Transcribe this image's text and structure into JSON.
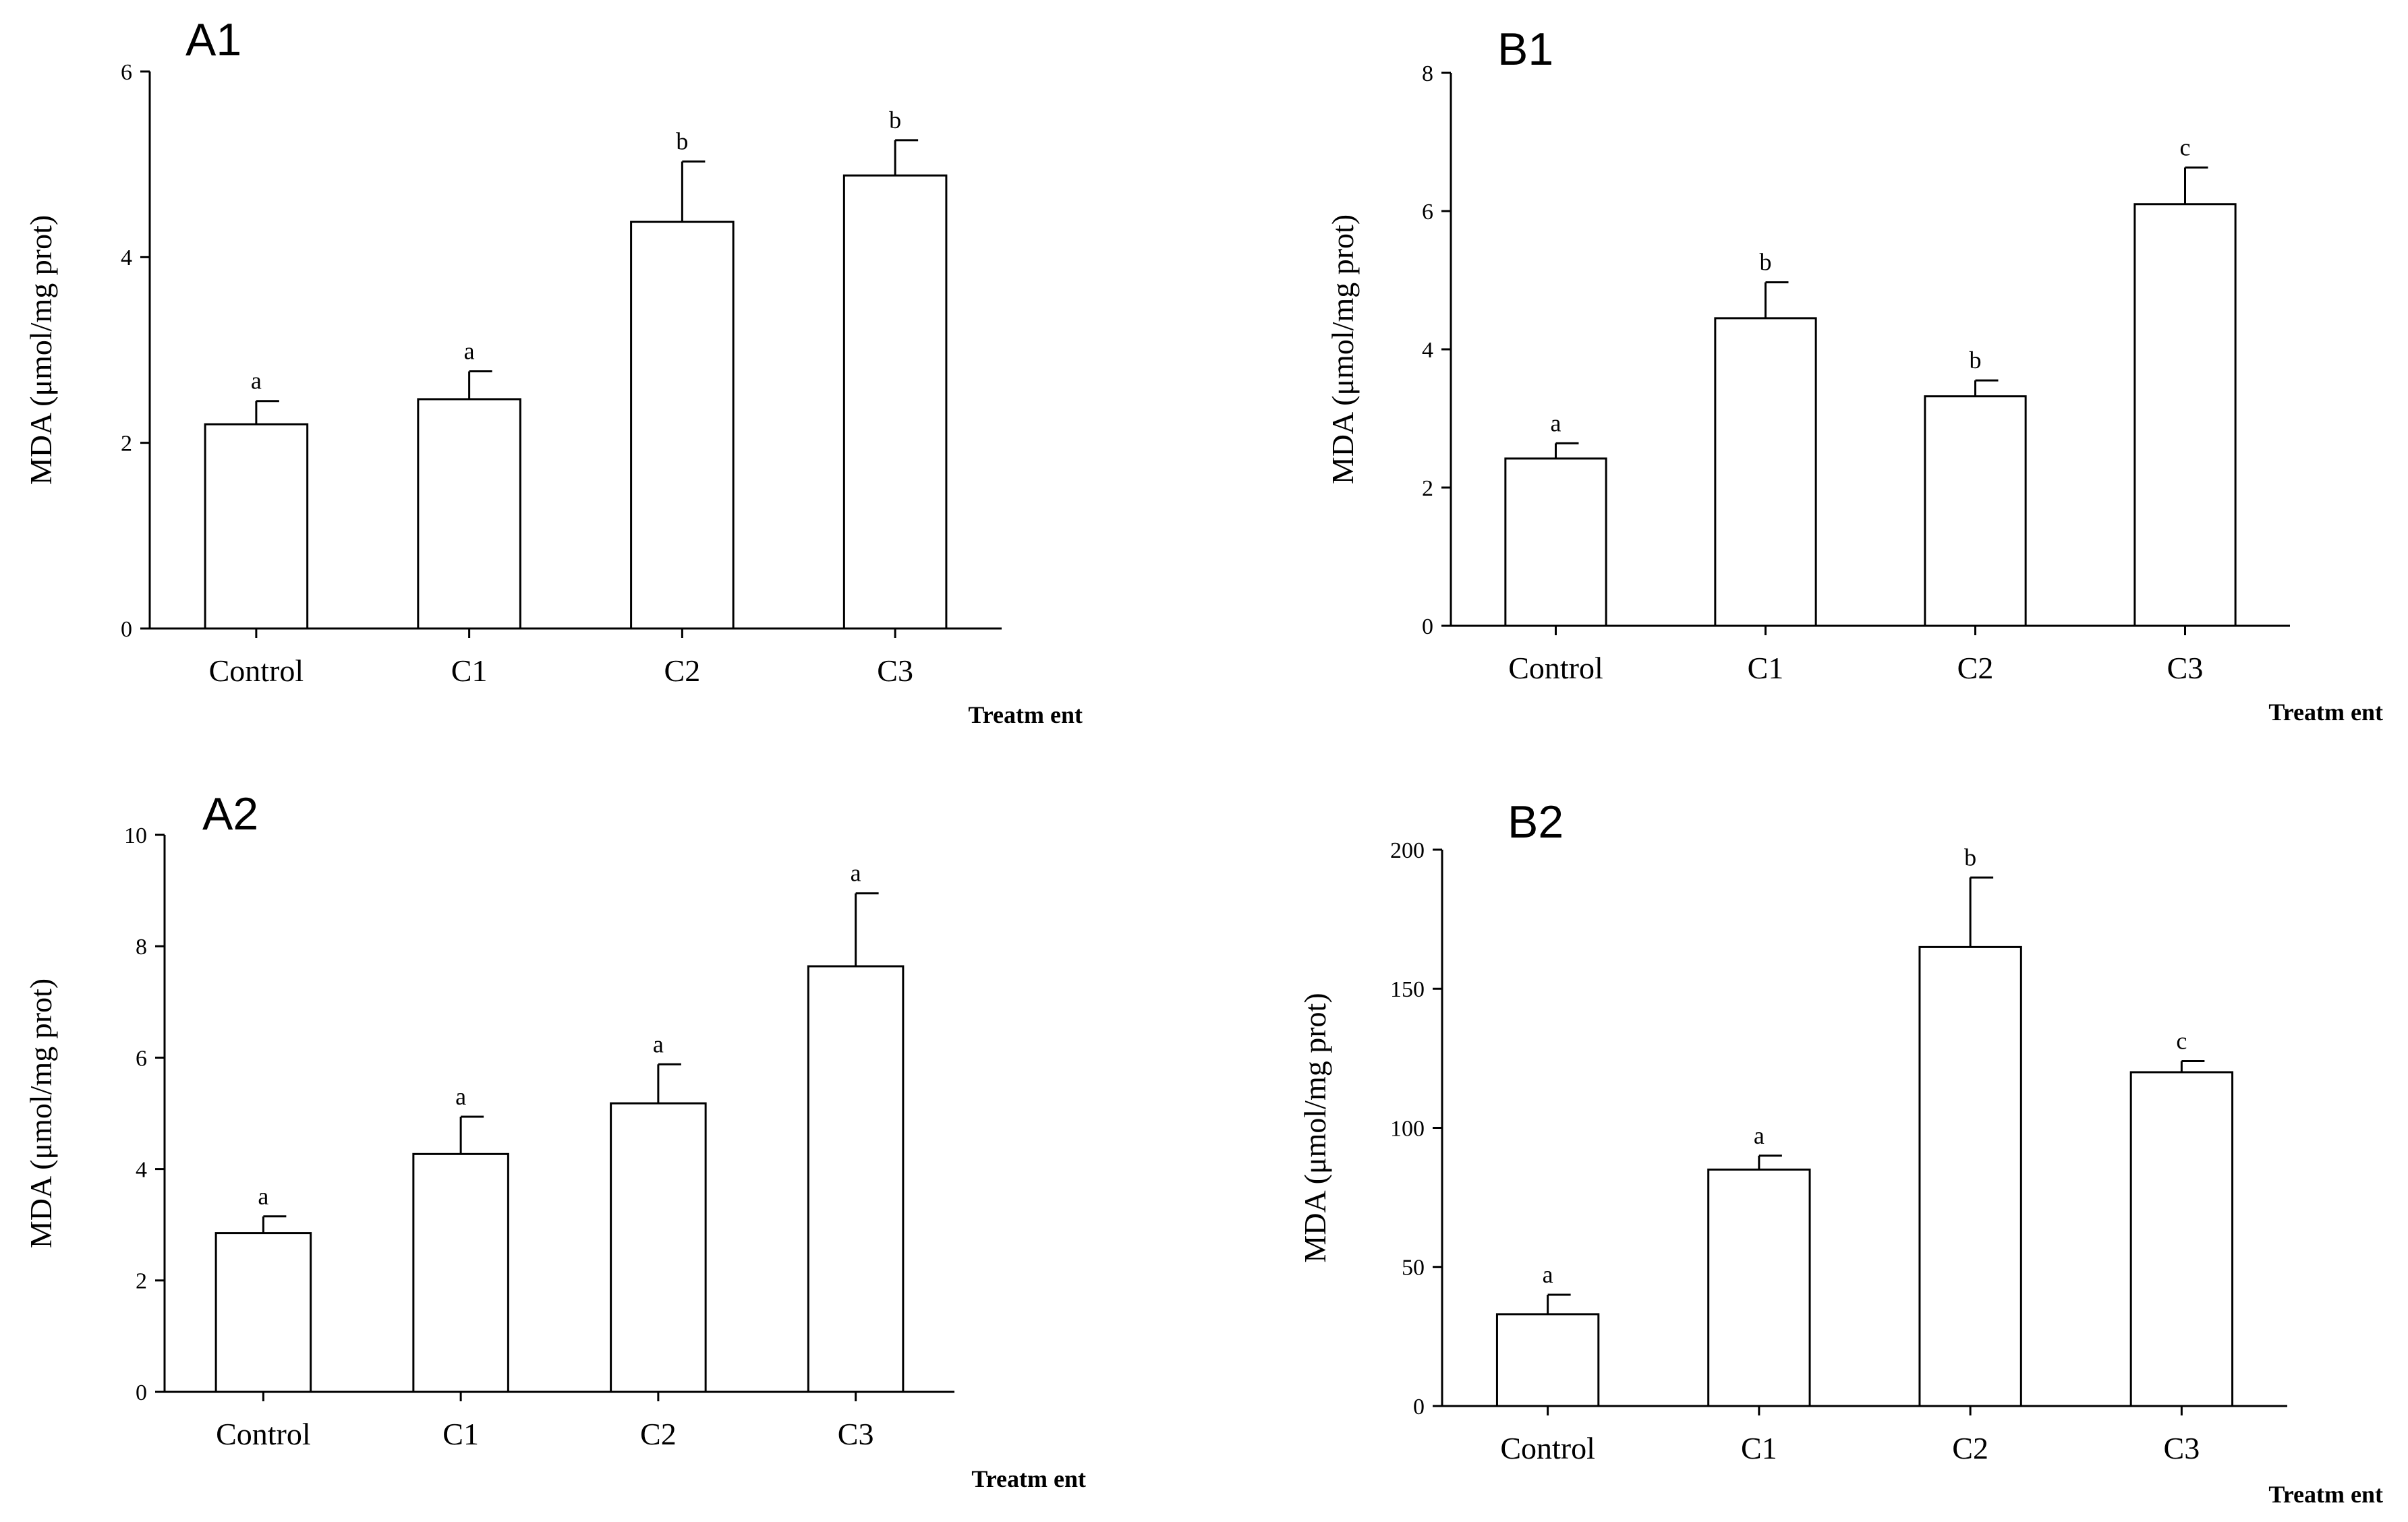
{
  "chart_data": [
    {
      "panel": "A1",
      "type": "bar",
      "title": "A1",
      "categories": [
        "Control",
        "C1",
        "C2",
        "C3"
      ],
      "values": [
        2.2,
        2.47,
        4.38,
        4.88
      ],
      "errors": [
        0.25,
        0.3,
        0.65,
        0.38
      ],
      "significance": [
        "a",
        "a",
        "b",
        "b"
      ],
      "ylabel": "MDA (μmol/mg prot)",
      "xlabel": "Treatm ent",
      "ylim": [
        0,
        6
      ],
      "yticks": [
        0,
        2,
        4,
        6
      ],
      "bar_color": "#ffffff",
      "edge_color": "#000000"
    },
    {
      "panel": "B1",
      "type": "bar",
      "title": "B1",
      "categories": [
        "Control",
        "C1",
        "C2",
        "C3"
      ],
      "values": [
        2.42,
        4.45,
        3.32,
        6.1
      ],
      "errors": [
        0.22,
        0.52,
        0.23,
        0.53
      ],
      "significance": [
        "a",
        "b",
        "b",
        "c"
      ],
      "ylabel": "MDA (μmol/mg prot)",
      "xlabel": "Treatm ent",
      "ylim": [
        0,
        8
      ],
      "yticks": [
        0,
        2,
        4,
        6,
        8
      ],
      "bar_color": "#ffffff",
      "edge_color": "#000000"
    },
    {
      "panel": "A2",
      "type": "bar",
      "title": "A2",
      "categories": [
        "Control",
        "C1",
        "C2",
        "C3"
      ],
      "values": [
        2.85,
        4.27,
        5.18,
        7.64
      ],
      "errors": [
        0.3,
        0.67,
        0.7,
        1.31
      ],
      "significance": [
        "a",
        "a",
        "a",
        "a"
      ],
      "ylabel": "MDA (μmol/mg prot)",
      "xlabel": "Treatm ent",
      "ylim": [
        0,
        10
      ],
      "yticks": [
        0,
        2,
        4,
        6,
        8,
        10
      ],
      "bar_color": "#ffffff",
      "edge_color": "#000000"
    },
    {
      "panel": "B2",
      "type": "bar",
      "title": "B2",
      "categories": [
        "Control",
        "C1",
        "C2",
        "C3"
      ],
      "values": [
        33,
        85,
        165,
        120
      ],
      "errors": [
        7,
        5,
        25,
        4
      ],
      "significance": [
        "a",
        "a",
        "b",
        "c"
      ],
      "ylabel": "MDA (μmol/mg prot)",
      "xlabel": "Treatm ent",
      "ylim": [
        0,
        200
      ],
      "yticks": [
        0,
        50,
        100,
        150,
        200
      ],
      "bar_color": "#ffffff",
      "edge_color": "#000000"
    }
  ]
}
